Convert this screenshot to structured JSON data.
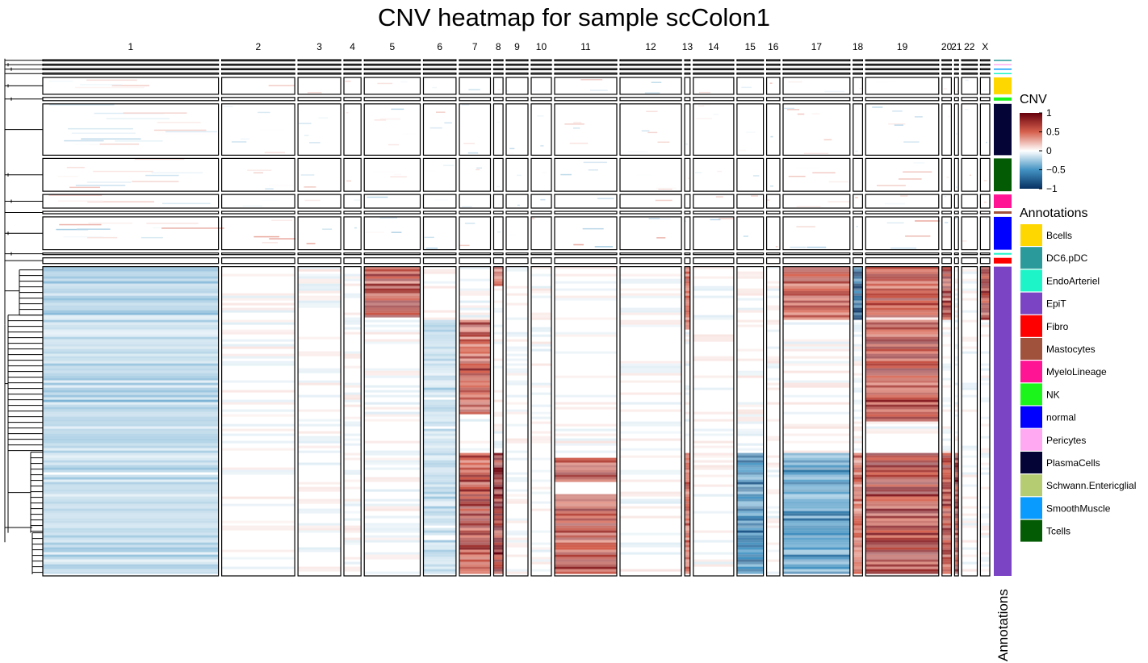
{
  "title": "CNV heatmap for sample scColon1",
  "colors": {
    "cnv_high": "#67000D",
    "cnv_mid_high": "#D6604D",
    "cnv_zero": "#FFFFFF",
    "cnv_mid_low": "#4393C3",
    "cnv_low": "#053061",
    "gain_strong": "#B2182B",
    "loss_strong": "#2166AC"
  },
  "chart_data": {
    "type": "heatmap",
    "title": "CNV heatmap for sample scColon1",
    "x_categories": [
      "1",
      "2",
      "3",
      "4",
      "5",
      "6",
      "7",
      "8",
      "9",
      "10",
      "11",
      "12",
      "13",
      "14",
      "15",
      "16",
      "17",
      "18",
      "19",
      "20",
      "21",
      "22",
      "X"
    ],
    "x_weights": [
      226,
      94,
      55,
      22,
      72,
      42,
      40,
      12,
      28,
      26,
      80,
      79,
      7,
      52,
      34,
      17,
      86,
      12,
      94,
      12,
      5,
      20,
      12
    ],
    "row_groups": [
      {
        "name": "DC6.pDC",
        "weight": 1.5
      },
      {
        "name": "Pericytes",
        "weight": 1.5
      },
      {
        "name": "SmoothMuscle",
        "weight": 1.5
      },
      {
        "name": "EndoArteriel",
        "weight": 1.5
      },
      {
        "name": "Bcells",
        "weight": 21
      },
      {
        "name": "NK",
        "weight": 4
      },
      {
        "name": "PlasmaCells",
        "weight": 64
      },
      {
        "name": "Tcells",
        "weight": 41
      },
      {
        "name": "MyeloLineage",
        "weight": 17
      },
      {
        "name": "Mastocytes",
        "weight": 3
      },
      {
        "name": "normal",
        "weight": 41
      },
      {
        "name": "EndoArteriel",
        "weight": 2
      },
      {
        "name": "Fibro",
        "weight": 7
      },
      {
        "name": "EpiT",
        "weight": 386
      }
    ],
    "color_scale": {
      "title": "CNV",
      "ticks": [
        1,
        0.5,
        0,
        -0.5,
        -1
      ],
      "tick_labels": [
        "1",
        "0.5",
        "0",
        "−0.5",
        "−1"
      ],
      "range": [
        -1,
        1
      ]
    },
    "annotation_legend": {
      "title": "Annotations",
      "items": [
        {
          "label": "Bcells",
          "color": "#FFD700"
        },
        {
          "label": "DC6.pDC",
          "color": "#2A9A9A"
        },
        {
          "label": "EndoArteriel",
          "color": "#1DF5C8"
        },
        {
          "label": "EpiT",
          "color": "#7B44C4"
        },
        {
          "label": "Fibro",
          "color": "#FF0000"
        },
        {
          "label": "Mastocytes",
          "color": "#A0523D"
        },
        {
          "label": "MyeloLineage",
          "color": "#FF1493"
        },
        {
          "label": "NK",
          "color": "#1CF51C"
        },
        {
          "label": "normal",
          "color": "#0000FF"
        },
        {
          "label": "Pericytes",
          "color": "#FFA9F2"
        },
        {
          "label": "PlasmaCells",
          "color": "#040436"
        },
        {
          "label": "Schwann.Entericglial",
          "color": "#B5CC72"
        },
        {
          "label": "SmoothMuscle",
          "color": "#0A9BFF"
        },
        {
          "label": "Tcells",
          "color": "#035C03"
        }
      ]
    },
    "annotation_bar_label": "Annotations",
    "epit_blocks": [
      {
        "chr": "5",
        "from": 0.0,
        "to": 0.16,
        "value": 0.8
      },
      {
        "chr": "7",
        "from": 0.17,
        "to": 0.48,
        "value": 0.75
      },
      {
        "chr": "7",
        "from": 0.6,
        "to": 1.0,
        "value": 0.8
      },
      {
        "chr": "8",
        "from": 0.0,
        "to": 0.06,
        "value": 0.6
      },
      {
        "chr": "8",
        "from": 0.6,
        "to": 1.0,
        "value": 1.0
      },
      {
        "chr": "11",
        "from": 0.62,
        "to": 0.7,
        "value": 0.7
      },
      {
        "chr": "11",
        "from": 0.74,
        "to": 1.0,
        "value": 0.75
      },
      {
        "chr": "13",
        "from": 0.0,
        "to": 0.2,
        "value": 0.6
      },
      {
        "chr": "13",
        "from": 0.6,
        "to": 1.0,
        "value": 0.6
      },
      {
        "chr": "15",
        "from": 0.6,
        "to": 1.0,
        "value": -0.7
      },
      {
        "chr": "17",
        "from": 0.0,
        "to": 0.17,
        "value": 0.7
      },
      {
        "chr": "17",
        "from": 0.6,
        "to": 1.0,
        "value": -0.6
      },
      {
        "chr": "18",
        "from": 0.0,
        "to": 0.17,
        "value": -1.0
      },
      {
        "chr": "18",
        "from": 0.6,
        "to": 1.0,
        "value": 0.6
      },
      {
        "chr": "19",
        "from": 0.0,
        "to": 0.16,
        "value": 0.75
      },
      {
        "chr": "19",
        "from": 0.17,
        "to": 0.5,
        "value": 0.8
      },
      {
        "chr": "19",
        "from": 0.6,
        "to": 1.0,
        "value": 0.85
      },
      {
        "chr": "20",
        "from": 0.0,
        "to": 0.17,
        "value": 0.9
      },
      {
        "chr": "20",
        "from": 0.6,
        "to": 1.0,
        "value": 0.8
      },
      {
        "chr": "21",
        "from": 0.6,
        "to": 1.0,
        "value": 0.9
      },
      {
        "chr": "X",
        "from": 0.0,
        "to": 0.17,
        "value": 0.85
      },
      {
        "chr": "1",
        "from": 0.0,
        "to": 1.0,
        "value": -0.25
      },
      {
        "chr": "6",
        "from": 0.17,
        "to": 1.0,
        "value": -0.2
      }
    ]
  }
}
